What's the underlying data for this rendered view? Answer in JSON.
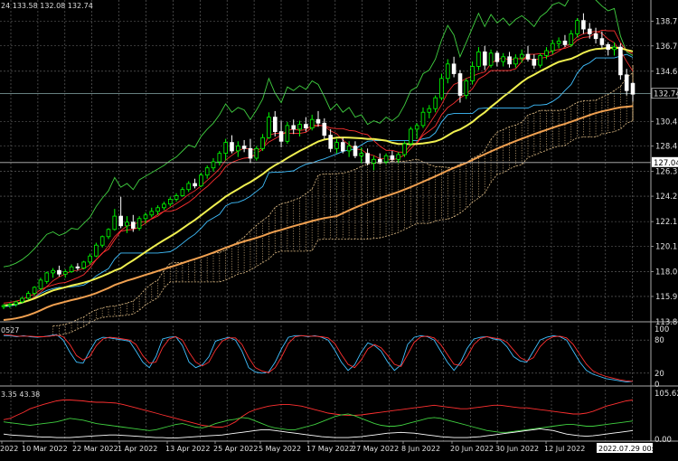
{
  "colors": {
    "background": "#000000",
    "grid": "#6e6e6e",
    "axis_text": "#e0e0e0",
    "candle_bull": "#00ff00",
    "candle_bear": "#ffffff",
    "ma_yellow": "#f0f050",
    "ma_orange": "#f0a050",
    "tenkan": "#ff3030",
    "kijun": "#40c0ff",
    "chikou": "#40d040",
    "cloud": "#e6c28a",
    "stoch_main": "#40c0ff",
    "stoch_signal": "#ff3030",
    "adx_plus": "#ff3030",
    "adx_minus": "#40d040",
    "adx_line": "#ffffff"
  },
  "chart_data": [
    {
      "type": "candlestick",
      "panel": "main",
      "header": "24 133.58 132.08 132.74",
      "ylim": [
        113.85,
        140.5
      ],
      "y_ticks": [
        "138.75",
        "136.70",
        "134.60",
        "132.74",
        "130.45",
        "128.40",
        "127.04",
        "126.30",
        "124.25",
        "122.15",
        "120.10",
        "118.00",
        "115.95",
        "113.85"
      ],
      "current_price_label": "132.74",
      "level_label": "127.04",
      "x_dates": [
        "2022",
        "10 Mar 2022",
        "22 Mar 2022",
        "1 Apr 2022",
        "13 Apr 2022",
        "25 Apr 2022",
        "5 May 2022",
        "17 May 2022",
        "27 May 2022",
        "8 Jun 2022",
        "20 Jun 2022",
        "30 Jun 2022",
        "12 Jul 2022",
        "2022.07.29 00:00"
      ],
      "ohlc": [
        [
          115.1,
          115.3,
          114.9,
          115.2
        ],
        [
          115.2,
          115.4,
          115.0,
          115.3
        ],
        [
          115.3,
          115.6,
          115.1,
          115.5
        ],
        [
          115.5,
          115.9,
          115.4,
          115.8
        ],
        [
          115.8,
          116.4,
          115.7,
          116.2
        ],
        [
          116.2,
          116.8,
          116.0,
          116.7
        ],
        [
          116.6,
          117.5,
          116.5,
          117.3
        ],
        [
          117.2,
          118.0,
          117.0,
          117.9
        ],
        [
          117.9,
          118.3,
          117.5,
          118.1
        ],
        [
          118.1,
          118.5,
          117.6,
          117.8
        ],
        [
          117.8,
          118.2,
          117.5,
          118.0
        ],
        [
          118.0,
          118.6,
          117.9,
          118.4
        ],
        [
          118.4,
          118.7,
          118.1,
          118.3
        ],
        [
          118.3,
          118.9,
          118.2,
          118.8
        ],
        [
          118.8,
          119.5,
          118.6,
          119.3
        ],
        [
          119.3,
          120.4,
          119.2,
          120.2
        ],
        [
          120.2,
          121.0,
          120.0,
          120.9
        ],
        [
          120.9,
          121.6,
          120.7,
          121.5
        ],
        [
          121.5,
          123.2,
          121.4,
          122.6
        ],
        [
          122.6,
          124.2,
          121.6,
          121.8
        ],
        [
          121.8,
          122.6,
          121.2,
          122.1
        ],
        [
          122.1,
          122.7,
          121.3,
          121.6
        ],
        [
          121.6,
          122.6,
          121.4,
          122.4
        ],
        [
          122.4,
          122.9,
          122.0,
          122.7
        ],
        [
          122.7,
          123.3,
          122.5,
          123.0
        ],
        [
          123.0,
          123.5,
          122.7,
          123.3
        ],
        [
          123.3,
          123.8,
          123.1,
          123.6
        ],
        [
          123.6,
          124.2,
          123.4,
          124.0
        ],
        [
          124.0,
          124.5,
          123.8,
          124.3
        ],
        [
          124.3,
          125.0,
          124.2,
          124.8
        ],
        [
          124.8,
          125.5,
          124.6,
          125.3
        ],
        [
          125.3,
          125.7,
          124.9,
          125.1
        ],
        [
          125.1,
          126.2,
          125.0,
          126.0
        ],
        [
          126.0,
          126.8,
          125.7,
          126.6
        ],
        [
          126.6,
          127.4,
          126.3,
          127.1
        ],
        [
          127.1,
          128.0,
          126.8,
          127.8
        ],
        [
          127.8,
          129.0,
          127.2,
          128.7
        ],
        [
          128.7,
          129.3,
          127.8,
          128.0
        ],
        [
          128.0,
          128.8,
          127.5,
          128.4
        ],
        [
          128.4,
          128.9,
          127.9,
          128.2
        ],
        [
          128.2,
          129.0,
          127.0,
          127.4
        ],
        [
          127.4,
          128.4,
          127.2,
          128.2
        ],
        [
          128.2,
          129.4,
          128.0,
          129.1
        ],
        [
          129.1,
          131.2,
          129.0,
          130.8
        ],
        [
          130.8,
          131.3,
          129.2,
          129.6
        ],
        [
          129.6,
          130.5,
          128.3,
          128.8
        ],
        [
          128.8,
          130.4,
          128.6,
          130.1
        ],
        [
          130.1,
          130.6,
          129.4,
          129.8
        ],
        [
          129.8,
          130.5,
          129.2,
          130.2
        ],
        [
          130.2,
          130.8,
          129.6,
          129.9
        ],
        [
          129.9,
          131.0,
          129.7,
          130.6
        ],
        [
          130.6,
          131.3,
          130.0,
          130.3
        ],
        [
          130.3,
          130.7,
          129.0,
          129.3
        ],
        [
          129.3,
          129.8,
          127.9,
          128.2
        ],
        [
          128.2,
          129.0,
          127.8,
          128.7
        ],
        [
          128.7,
          129.1,
          127.8,
          128.0
        ],
        [
          128.0,
          128.8,
          127.5,
          128.4
        ],
        [
          128.4,
          128.8,
          127.4,
          127.6
        ],
        [
          127.6,
          128.3,
          127.0,
          127.8
        ],
        [
          127.8,
          128.2,
          126.8,
          127.0
        ],
        [
          127.0,
          127.6,
          126.4,
          127.3
        ],
        [
          127.3,
          127.8,
          126.9,
          127.1
        ],
        [
          127.1,
          127.8,
          126.9,
          127.6
        ],
        [
          127.6,
          128.0,
          127.1,
          127.3
        ],
        [
          127.3,
          127.9,
          127.0,
          127.7
        ],
        [
          127.7,
          128.8,
          127.5,
          128.6
        ],
        [
          128.6,
          130.0,
          128.4,
          129.8
        ],
        [
          129.8,
          130.3,
          129.0,
          130.1
        ],
        [
          130.1,
          131.6,
          129.9,
          131.2
        ],
        [
          131.2,
          131.8,
          130.7,
          131.5
        ],
        [
          131.5,
          132.6,
          131.2,
          132.4
        ],
        [
          132.4,
          134.4,
          132.2,
          134.0
        ],
        [
          134.0,
          135.6,
          133.6,
          135.2
        ],
        [
          135.2,
          135.8,
          134.1,
          134.4
        ],
        [
          134.4,
          134.7,
          132.0,
          132.6
        ],
        [
          132.6,
          134.0,
          132.3,
          133.8
        ],
        [
          133.8,
          135.4,
          133.5,
          135.0
        ],
        [
          135.0,
          136.6,
          134.7,
          136.2
        ],
        [
          136.2,
          136.7,
          134.7,
          135.1
        ],
        [
          135.1,
          136.4,
          134.9,
          136.1
        ],
        [
          136.1,
          136.3,
          135.0,
          135.4
        ],
        [
          135.4,
          136.1,
          135.0,
          135.8
        ],
        [
          135.8,
          136.2,
          134.9,
          135.2
        ],
        [
          135.2,
          136.0,
          134.9,
          135.7
        ],
        [
          135.7,
          136.4,
          135.3,
          136.0
        ],
        [
          136.0,
          136.7,
          135.4,
          135.6
        ],
        [
          135.6,
          136.0,
          134.8,
          135.1
        ],
        [
          135.1,
          136.1,
          134.9,
          135.9
        ],
        [
          135.9,
          136.6,
          135.6,
          136.3
        ],
        [
          136.3,
          137.2,
          136.0,
          136.9
        ],
        [
          136.9,
          137.4,
          136.5,
          137.1
        ],
        [
          137.1,
          137.6,
          136.6,
          136.8
        ],
        [
          136.8,
          138.0,
          136.6,
          137.7
        ],
        [
          137.7,
          139.0,
          137.4,
          138.8
        ],
        [
          138.8,
          139.4,
          137.7,
          138.1
        ],
        [
          138.1,
          138.6,
          137.3,
          137.7
        ],
        [
          137.7,
          138.2,
          136.9,
          137.3
        ],
        [
          137.3,
          137.9,
          136.5,
          136.8
        ],
        [
          136.8,
          137.0,
          135.9,
          136.4
        ],
        [
          136.4,
          137.0,
          135.9,
          136.6
        ],
        [
          136.6,
          136.9,
          133.9,
          134.3
        ],
        [
          134.3,
          134.8,
          132.6,
          133.0
        ],
        [
          133.6,
          133.7,
          132.1,
          132.7
        ]
      ]
    },
    {
      "type": "line",
      "panel": "stochastic",
      "header": "0527",
      "ylim": [
        0,
        100
      ],
      "y_ticks": [
        "100",
        "80",
        "20",
        "0"
      ],
      "series": [
        {
          "color_key": "stoch_main",
          "values": [
            88,
            88,
            86,
            88,
            86,
            85,
            86,
            88,
            90,
            80,
            58,
            40,
            38,
            60,
            80,
            85,
            84,
            82,
            80,
            78,
            60,
            40,
            30,
            50,
            82,
            85,
            86,
            70,
            40,
            30,
            35,
            50,
            78,
            82,
            85,
            80,
            60,
            30,
            22,
            20,
            22,
            40,
            65,
            85,
            88,
            88,
            86,
            88,
            85,
            80,
            62,
            40,
            25,
            35,
            58,
            75,
            70,
            60,
            40,
            25,
            35,
            72,
            85,
            88,
            86,
            80,
            60,
            40,
            25,
            40,
            65,
            82,
            85,
            86,
            82,
            80,
            68,
            50,
            42,
            40,
            60,
            80,
            85,
            88,
            86,
            80,
            60,
            40,
            25,
            18,
            14,
            10,
            8,
            6,
            4,
            5
          ]
        },
        {
          "color_key": "stoch_signal",
          "values": [
            90,
            89,
            87,
            87,
            87,
            86,
            86,
            87,
            89,
            86,
            72,
            52,
            44,
            50,
            70,
            82,
            85,
            84,
            82,
            80,
            72,
            52,
            38,
            40,
            66,
            82,
            86,
            80,
            58,
            40,
            33,
            40,
            62,
            78,
            84,
            84,
            72,
            48,
            30,
            24,
            21,
            30,
            50,
            74,
            86,
            88,
            87,
            87,
            86,
            84,
            74,
            54,
            36,
            30,
            44,
            64,
            72,
            66,
            52,
            36,
            32,
            54,
            76,
            86,
            87,
            84,
            72,
            54,
            36,
            34,
            50,
            72,
            83,
            86,
            84,
            82,
            76,
            62,
            48,
            42,
            48,
            68,
            80,
            86,
            87,
            84,
            72,
            54,
            36,
            24,
            18,
            14,
            11,
            8,
            6,
            5
          ]
        }
      ]
    },
    {
      "type": "line",
      "panel": "adx",
      "header": "3.35 43.38",
      "ylim": [
        0,
        105.62
      ],
      "y_ticks": [
        "105.62",
        "0.00"
      ],
      "series": [
        {
          "color_key": "adx_plus",
          "values": [
            45,
            48,
            55,
            62,
            70,
            75,
            80,
            84,
            88,
            90,
            90,
            89,
            88,
            86,
            85,
            85,
            84,
            83,
            80,
            76,
            72,
            68,
            64,
            60,
            56,
            52,
            48,
            44,
            40,
            36,
            32,
            30,
            28,
            28,
            32,
            40,
            52,
            62,
            68,
            72,
            76,
            78,
            80,
            80,
            78,
            76,
            72,
            68,
            64,
            60,
            58,
            56,
            55,
            55,
            56,
            58,
            60,
            62,
            64,
            66,
            68,
            70,
            72,
            74,
            76,
            78,
            76,
            74,
            72,
            70,
            70,
            72,
            74,
            76,
            78,
            78,
            76,
            74,
            72,
            72,
            70,
            68,
            66,
            64,
            62,
            60,
            58,
            58,
            60,
            64,
            70,
            76,
            80,
            84,
            88,
            90
          ]
        },
        {
          "color_key": "adx_minus",
          "values": [
            40,
            38,
            36,
            34,
            32,
            34,
            36,
            38,
            40,
            44,
            48,
            46,
            44,
            40,
            36,
            34,
            32,
            30,
            28,
            26,
            24,
            22,
            20,
            22,
            26,
            30,
            34,
            36,
            32,
            28,
            26,
            30,
            36,
            40,
            44,
            46,
            50,
            48,
            42,
            36,
            30,
            26,
            24,
            22,
            22,
            26,
            30,
            34,
            40,
            46,
            52,
            56,
            58,
            54,
            48,
            42,
            36,
            32,
            30,
            30,
            32,
            36,
            40,
            44,
            48,
            50,
            48,
            44,
            40,
            36,
            32,
            28,
            24,
            20,
            18,
            16,
            16,
            18,
            20,
            22,
            24,
            26,
            28,
            30,
            32,
            34,
            34,
            32,
            30,
            30,
            32,
            34,
            36,
            38,
            40,
            42
          ]
        },
        {
          "color_key": "adx_line",
          "values": [
            12,
            10,
            9,
            8,
            7,
            6,
            5,
            5,
            4,
            4,
            4,
            5,
            6,
            7,
            8,
            9,
            10,
            10,
            9,
            8,
            7,
            6,
            5,
            4,
            4,
            3,
            3,
            4,
            5,
            6,
            7,
            8,
            9,
            10,
            12,
            14,
            16,
            18,
            20,
            22,
            22,
            20,
            18,
            16,
            14,
            12,
            10,
            8,
            6,
            5,
            4,
            4,
            4,
            5,
            6,
            8,
            10,
            12,
            14,
            15,
            16,
            15,
            14,
            12,
            10,
            8,
            6,
            5,
            4,
            4,
            4,
            5,
            6,
            8,
            10,
            12,
            14,
            16,
            18,
            20,
            22,
            24,
            22,
            20,
            16,
            12,
            10,
            8,
            7,
            8,
            10,
            12,
            14,
            16,
            18,
            20
          ]
        }
      ]
    }
  ]
}
